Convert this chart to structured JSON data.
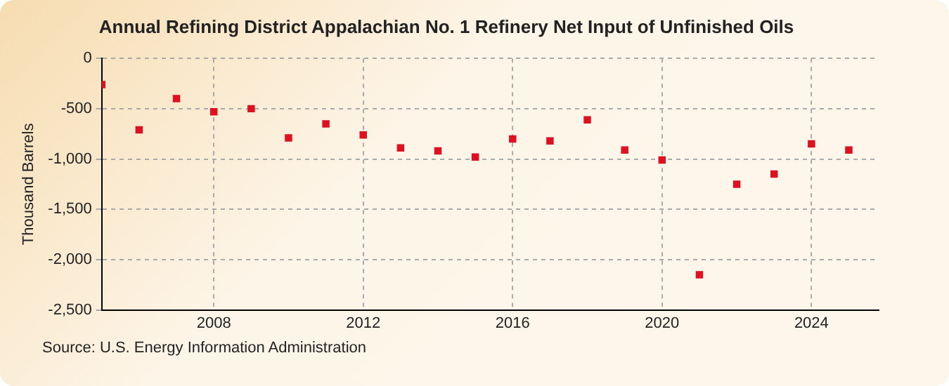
{
  "chart_data": {
    "type": "scatter",
    "title": "Annual Refining District Appalachian No. 1 Refinery Net Input of Unfinished Oils",
    "ylabel": "Thousand Barrels",
    "annotations": [
      "Source: U.S. Energy Information Administration"
    ],
    "x": [
      2005,
      2006,
      2007,
      2008,
      2009,
      2010,
      2011,
      2012,
      2013,
      2014,
      2015,
      2016,
      2017,
      2018,
      2019,
      2020,
      2021,
      2022,
      2023,
      2024,
      2025
    ],
    "series": [
      {
        "color": "#dd1122",
        "values": [
          -260,
          -710,
          -400,
          -530,
          -500,
          -790,
          -650,
          -760,
          -890,
          -920,
          -980,
          -800,
          -820,
          -610,
          -910,
          -1010,
          -2150,
          -1250,
          -1150,
          -850,
          -910
        ]
      }
    ],
    "xlim": [
      2005,
      2025.8
    ],
    "xticks": [
      2008,
      2012,
      2016,
      2020,
      2024
    ],
    "ylim": [
      -2500,
      0
    ],
    "yticks": [
      0,
      -500,
      {
        "value": -1000,
        "label": "-1,000"
      },
      {
        "value": -1500,
        "label": "-1,500"
      },
      {
        "value": -2000,
        "label": "-2,000"
      },
      {
        "value": -2500,
        "label": "-2,500"
      }
    ],
    "grid": true,
    "legend": false,
    "marker": "square"
  }
}
